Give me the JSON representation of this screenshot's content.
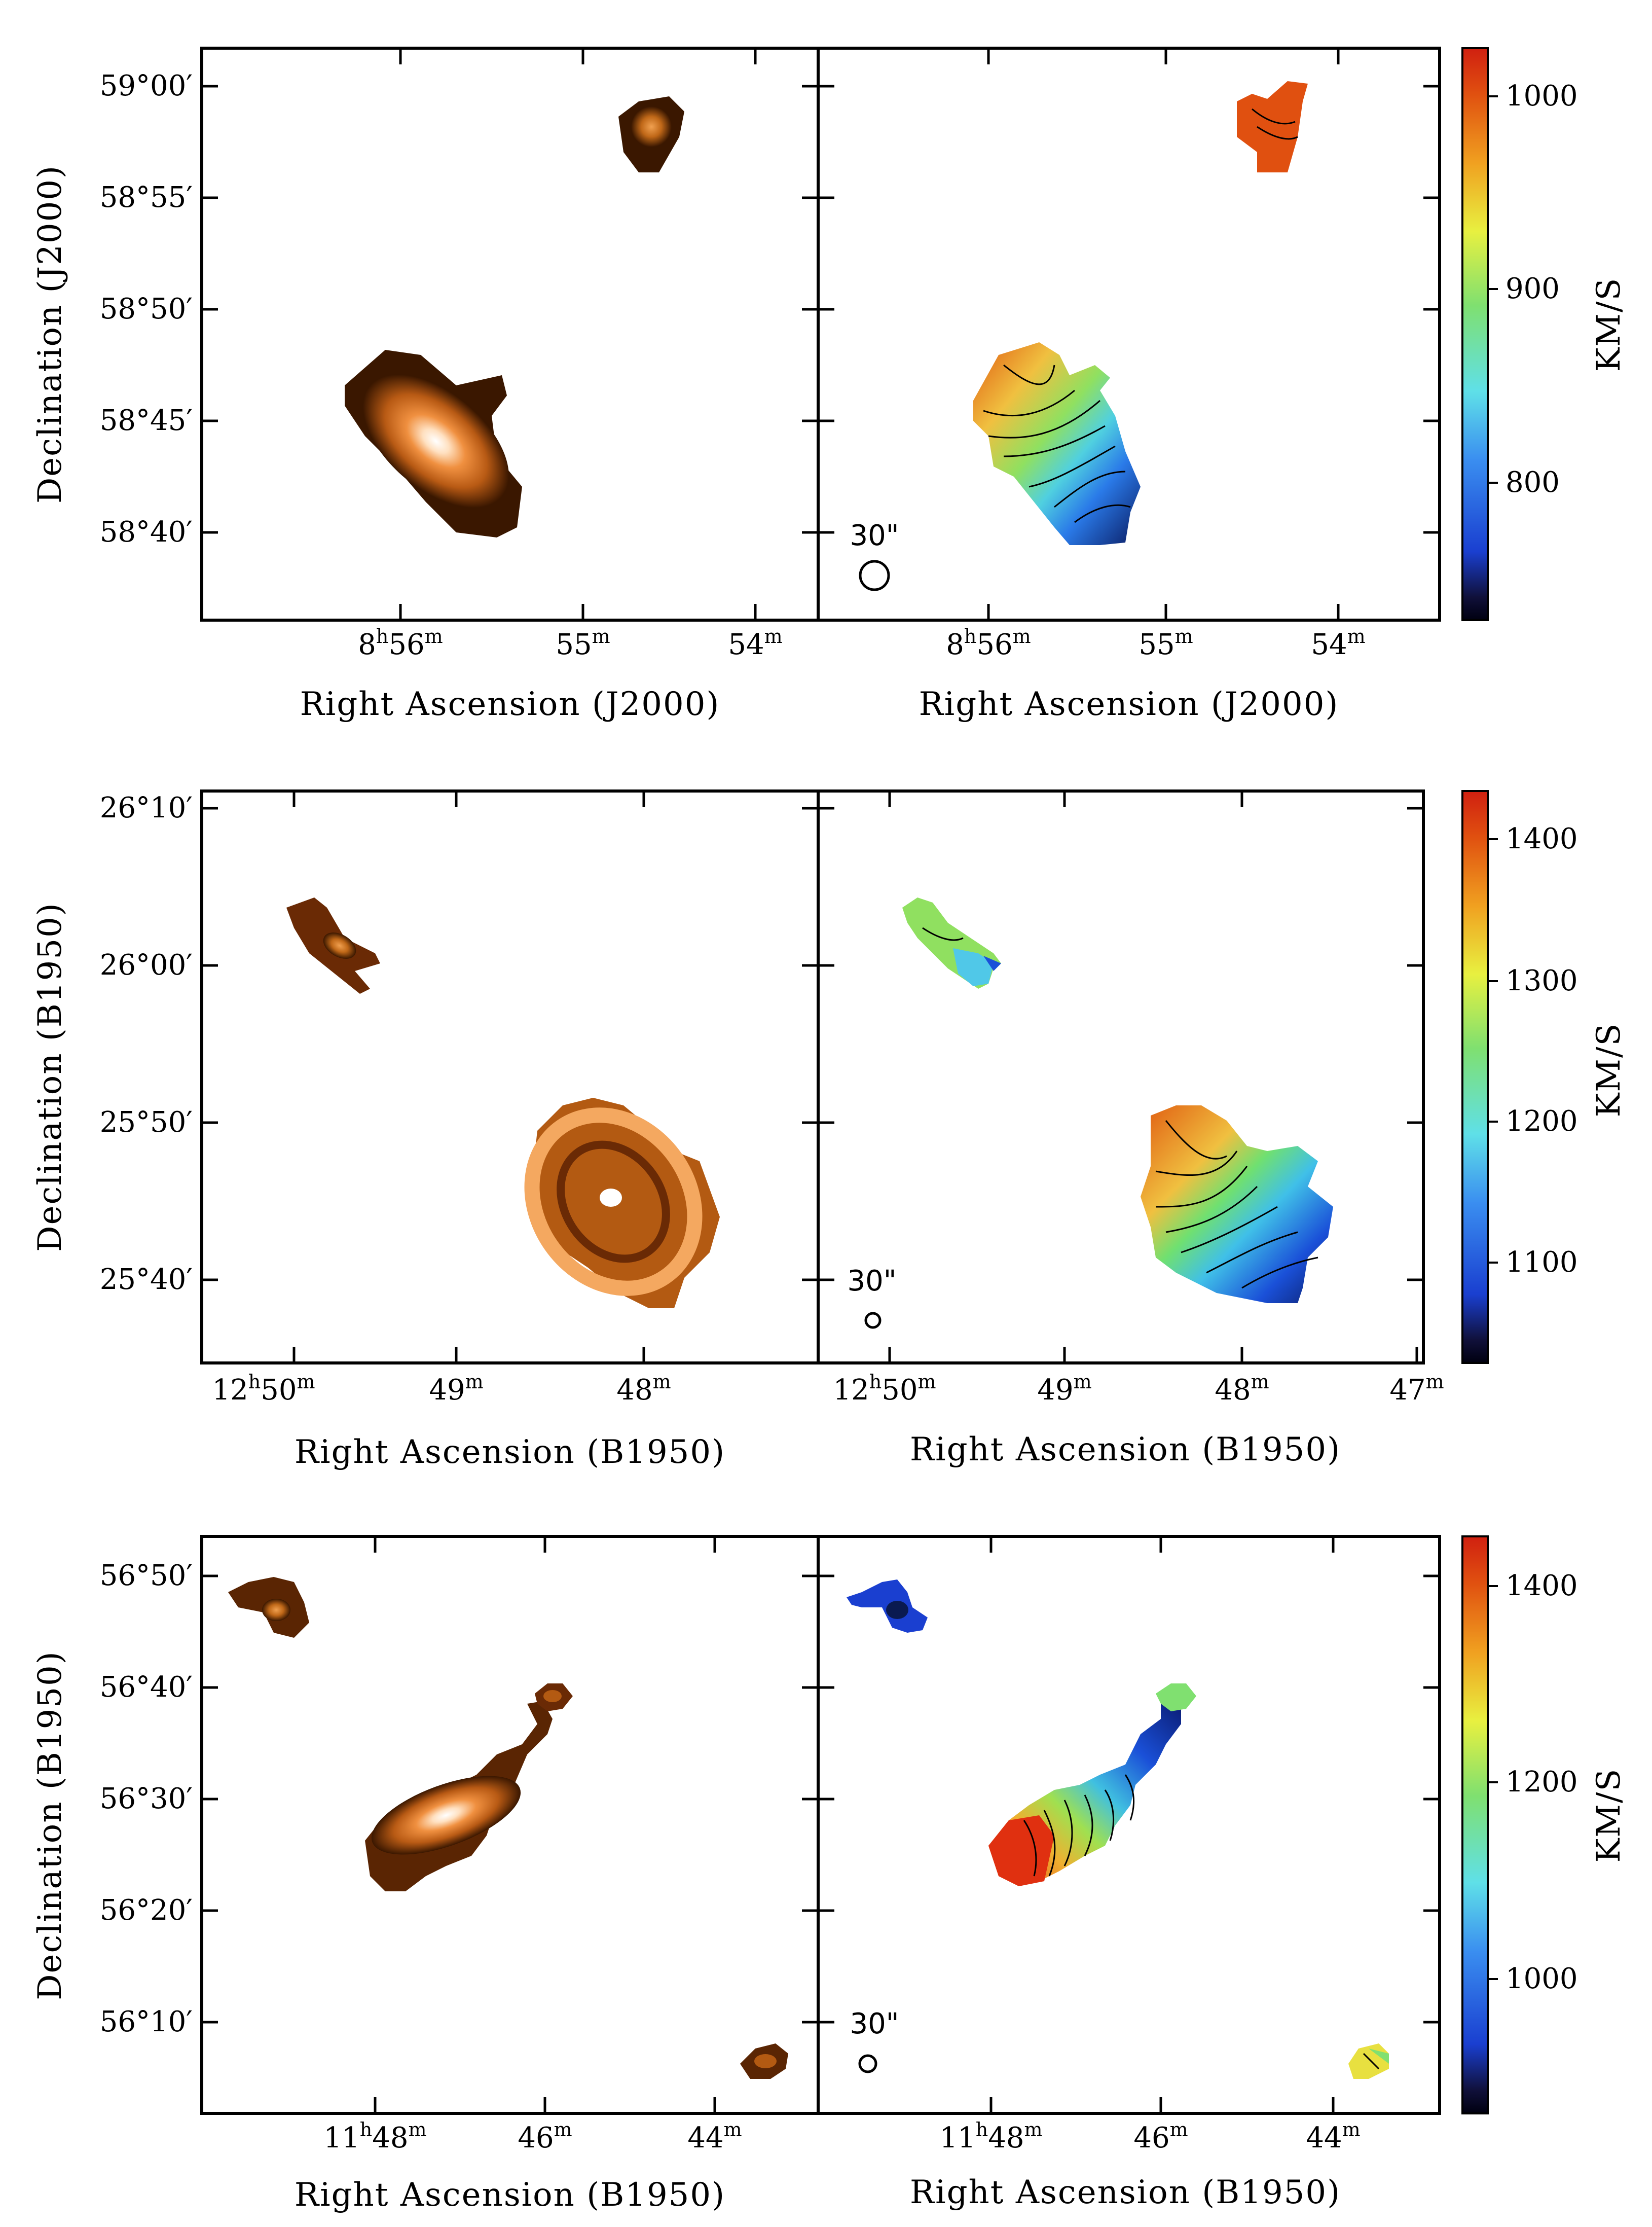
{
  "rows": [
    {
      "id": "row1",
      "xlabel": "Right Ascension (J2000)",
      "ylabel": "Declination (J2000)",
      "colorbar_label": "KM/S",
      "beam_label": "30\"",
      "dec_ticks": [
        "59°00′",
        "58°55′",
        "58°50′",
        "58°45′",
        "58°40′"
      ],
      "ra_ticks_left": [
        [
          "8",
          "h",
          "56",
          "m"
        ],
        [
          "55",
          "m"
        ],
        [
          "54",
          "m"
        ]
      ],
      "ra_ticks_right": [
        [
          "8",
          "h",
          "56",
          "m"
        ],
        [
          "55",
          "m"
        ],
        [
          "54",
          "m"
        ]
      ],
      "colorbar_ticks": [
        "1000",
        "900",
        "800"
      ],
      "colorbar_range": [
        730,
        1025
      ]
    },
    {
      "id": "row2",
      "xlabel": "Right Ascension (B1950)",
      "ylabel": "Declination (B1950)",
      "colorbar_label": "KM/S",
      "beam_label": "30\"",
      "dec_ticks": [
        "26°10′",
        "26°00′",
        "25°50′",
        "25°40′"
      ],
      "ra_ticks_left": [
        [
          "12",
          "h",
          "50",
          "m"
        ],
        [
          "49",
          "m"
        ],
        [
          "48",
          "m"
        ]
      ],
      "ra_ticks_right": [
        [
          "12",
          "h",
          "50",
          "m"
        ],
        [
          "49",
          "m"
        ],
        [
          "48",
          "m"
        ],
        [
          "47",
          "m"
        ]
      ],
      "colorbar_ticks": [
        "1400",
        "1300",
        "1200",
        "1100"
      ],
      "colorbar_range": [
        1030,
        1440
      ]
    },
    {
      "id": "row3",
      "xlabel": "Right Ascension (B1950)",
      "ylabel": "Declination (B1950)",
      "colorbar_label": "KM/S",
      "beam_label": "30\"",
      "dec_ticks": [
        "56°50′",
        "56°40′",
        "56°30′",
        "56°20′",
        "56°10′"
      ],
      "ra_ticks_left": [
        [
          "11",
          "h",
          "48",
          "m"
        ],
        [
          "46",
          "m"
        ],
        [
          "44",
          "m"
        ]
      ],
      "ra_ticks_right": [
        [
          "11",
          "h",
          "48",
          "m"
        ],
        [
          "46",
          "m"
        ],
        [
          "44",
          "m"
        ]
      ],
      "colorbar_ticks": [
        "1400",
        "1200",
        "1000"
      ],
      "colorbar_range": [
        850,
        1450
      ]
    }
  ],
  "colors": {
    "intensity_dark": "#3a1700",
    "intensity_mid": "#b35a12",
    "intensity_light": "#f4a860",
    "intensity_peak": "#ffffff"
  }
}
